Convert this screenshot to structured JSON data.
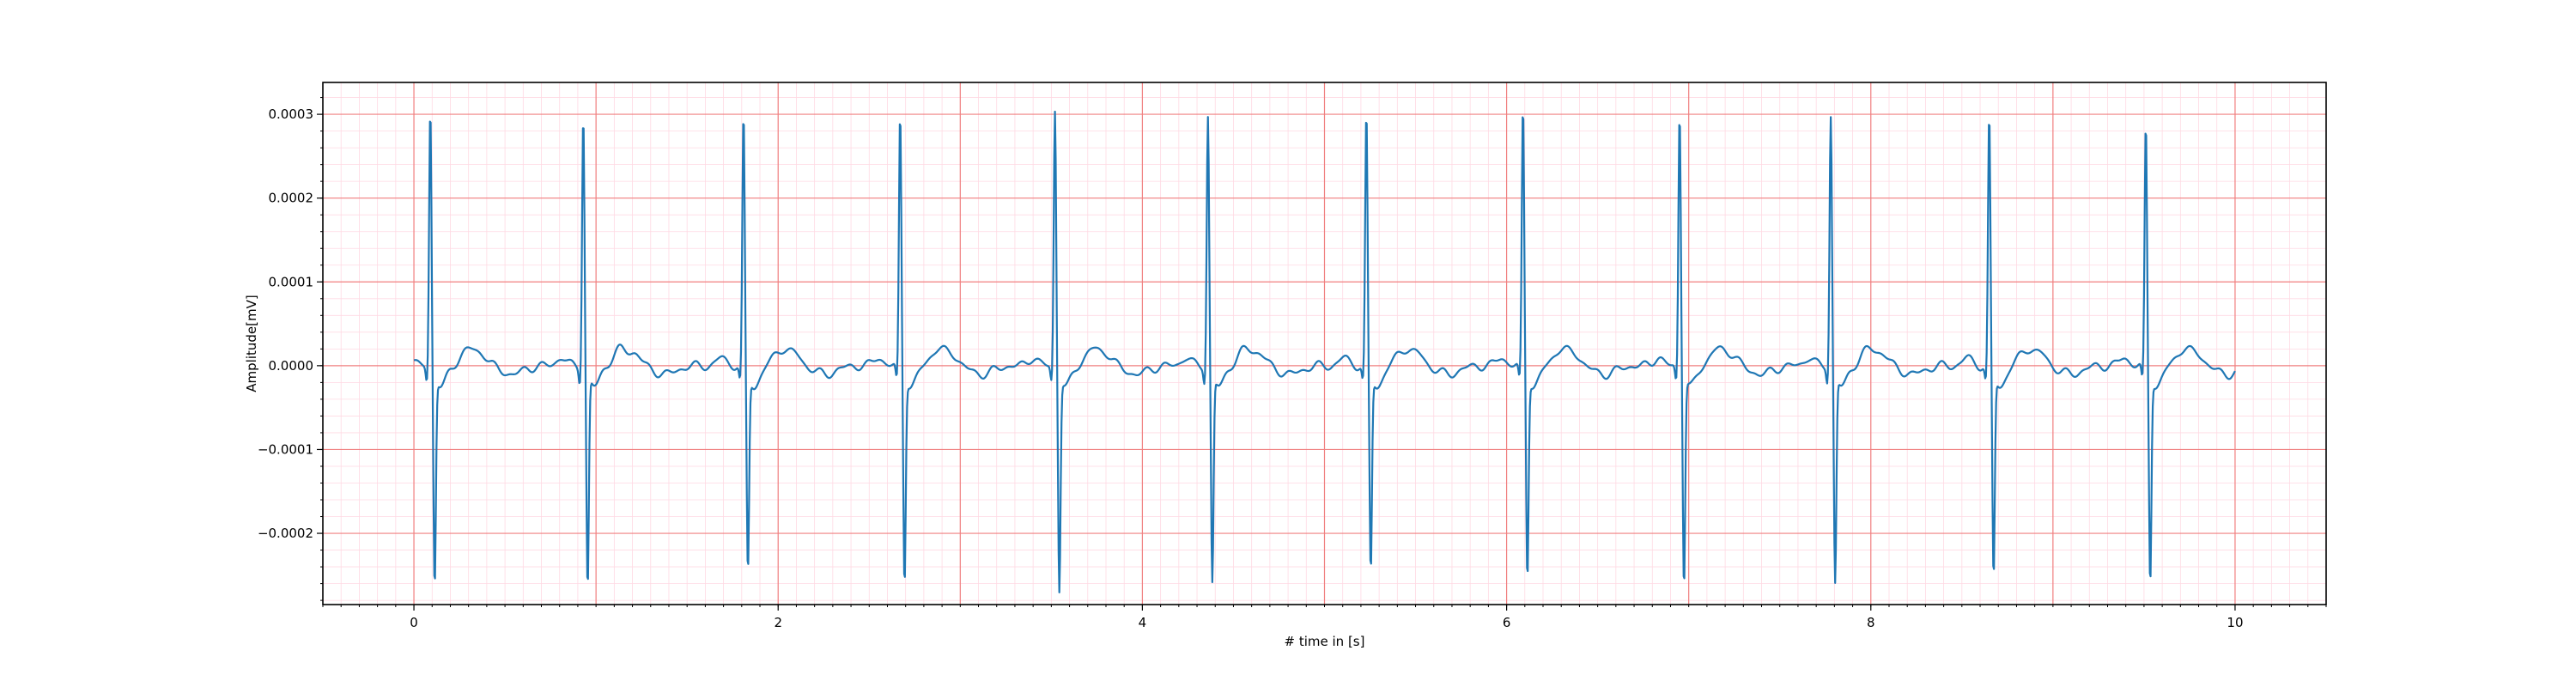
{
  "chart_data": {
    "type": "line",
    "title": "",
    "xlabel": "# time in [s]",
    "ylabel": "Amplitude[mV]",
    "xlim": [
      -0.5,
      10.5
    ],
    "ylim": [
      -0.000285,
      0.000338
    ],
    "x_ticks": [
      0,
      2,
      4,
      6,
      8,
      10
    ],
    "x_tick_labels": [
      "0",
      "2",
      "4",
      "6",
      "8",
      "10"
    ],
    "y_ticks": [
      -0.0002,
      -0.0001,
      0.0,
      0.0001,
      0.0002,
      0.0003
    ],
    "y_tick_labels": [
      "−0.0002",
      "−0.0001",
      "0.0000",
      "0.0001",
      "0.0002",
      "0.0003"
    ],
    "x_minor_step": 0.1,
    "y_minor_step": 2e-05,
    "grid": true,
    "legend": "none",
    "r_peaks_s": [
      0.09,
      0.93,
      1.81,
      2.67,
      3.52,
      4.36,
      5.23,
      6.09,
      6.95,
      7.78,
      8.65,
      9.51
    ],
    "r_amplitudes": [
      0.00031,
      0.000305,
      0.0003,
      0.000303,
      0.000308,
      0.000302,
      0.000302,
      0.000311,
      0.000307,
      0.000302,
      0.0003,
      0.00029
    ],
    "s_amplitudes": [
      -0.00025,
      -0.000255,
      -0.000235,
      -0.000245,
      -0.000255,
      -0.000248,
      -0.000235,
      -0.000238,
      -0.000248,
      -0.000248,
      -0.000242,
      -0.000245
    ],
    "series": [
      {
        "x_start": 0.0,
        "x_end": 10.0,
        "sample_step": 0.004,
        "color": "#1f77b4"
      }
    ],
    "colors": {
      "signal": "#1f77b4",
      "major_grid": "#f08080",
      "minor_grid": "#ffd9e3"
    }
  }
}
